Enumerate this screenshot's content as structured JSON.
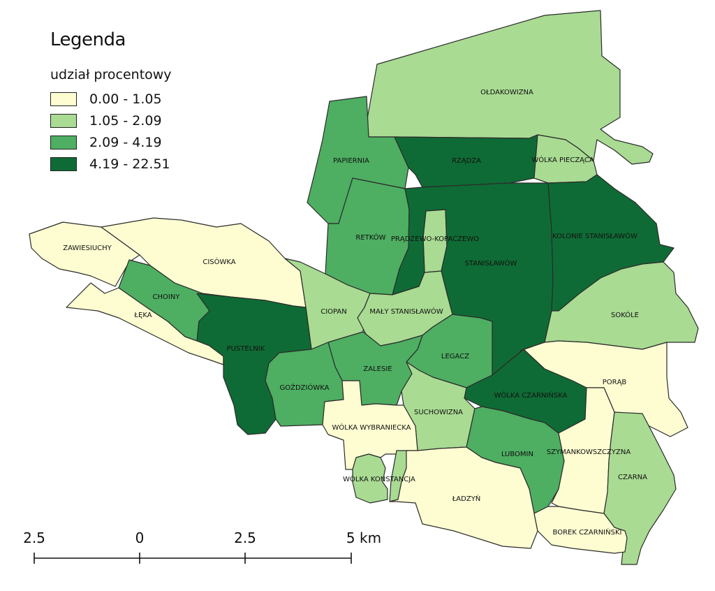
{
  "legend": {
    "title": "Legenda",
    "subtitle": "udział procentowy",
    "classes": [
      {
        "label": "0.00 - 1.05",
        "color": "#fefdd2"
      },
      {
        "label": "1.05 - 2.09",
        "color": "#a9db93"
      },
      {
        "label": "2.09 - 4.19",
        "color": "#4eae62"
      },
      {
        "label": "4.19 - 22.51",
        "color": "#0f6b35"
      }
    ]
  },
  "regions": [
    {
      "name": "OŁDAKOWIZNA",
      "class": 1
    },
    {
      "name": "PAPIERNIA",
      "class": 2
    },
    {
      "name": "RZĄDZA",
      "class": 3
    },
    {
      "name": "WÓLKA PIECZĄCA",
      "class": 1
    },
    {
      "name": "RETKÓW",
      "class": 2
    },
    {
      "name": "PRĄDZEWO-KOPACZEWO",
      "class": 1
    },
    {
      "name": "STANISŁAWÓW",
      "class": 3
    },
    {
      "name": "KOLONIE STANISŁAWÓW",
      "class": 3
    },
    {
      "name": "ZAWIESIUCHY",
      "class": 0
    },
    {
      "name": "CISÓWKA",
      "class": 0
    },
    {
      "name": "CHOINY",
      "class": 2
    },
    {
      "name": "ŁĘKA",
      "class": 0
    },
    {
      "name": "CIOPAN",
      "class": 1
    },
    {
      "name": "MAŁY STANISŁAWÓW",
      "class": 1
    },
    {
      "name": "SOKÓLE",
      "class": 1
    },
    {
      "name": "PUSTELNIK",
      "class": 3
    },
    {
      "name": "LEGACZ",
      "class": 2
    },
    {
      "name": "ZALESIE",
      "class": 2
    },
    {
      "name": "GOŹDZIÓWKA",
      "class": 2
    },
    {
      "name": "WÓLKA CZARNIŃSKA",
      "class": 3
    },
    {
      "name": "PORĄB",
      "class": 0
    },
    {
      "name": "SUCHOWIZNA",
      "class": 1
    },
    {
      "name": "WÓLKA WYBRANIECKA",
      "class": 0
    },
    {
      "name": "LUBOMIN",
      "class": 2
    },
    {
      "name": "SZYMANKOWSZCZYZNA",
      "class": 0
    },
    {
      "name": "WÓLKA KONSTANCJA",
      "class": 1
    },
    {
      "name": "CZARNA",
      "class": 1
    },
    {
      "name": "ŁADZYŃ",
      "class": 0
    },
    {
      "name": "BOREK CZARNIŃSKI",
      "class": 0
    }
  ],
  "scale_bar": {
    "labels": [
      "2.5",
      "0",
      "2.5",
      "5 km"
    ]
  }
}
